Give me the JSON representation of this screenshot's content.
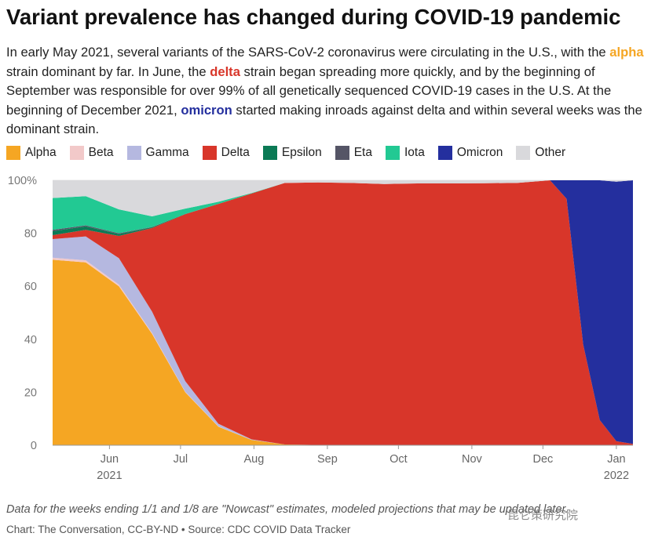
{
  "title": "Variant prevalence has changed during COVID-19 pandemic",
  "subtitle": {
    "p1": "In early May 2021, several variants of the SARS-CoV-2 coronavirus were circulating in the U.S., with the ",
    "alpha_word": "alpha",
    "p2": " strain dominant by far. In June, the ",
    "delta_word": "delta",
    "p3": " strain began spreading more quickly, and by the beginning of September was responsible for over 99% of all genetically sequenced COVID-19 cases in the U.S. At the beginning of December 2021, ",
    "omicron_word": "omicron",
    "p4": " started making inroads against delta and within several weeks was the dominant strain."
  },
  "colors": {
    "alpha": "#f5a623",
    "beta": "#f2c9c9",
    "gamma": "#b5b8e0",
    "delta": "#d8362a",
    "epsilon": "#0b7a55",
    "eta": "#555566",
    "iota": "#22c993",
    "omicron": "#242f9e",
    "other": "#d9d9dc"
  },
  "note": "Data for the weeks ending 1/1 and 1/8 are \"Nowcast\" estimates, modeled projections that may be updated later.",
  "credit": "Chart: The Conversation, CC-BY-ND • Source: CDC COVID Data Tracker",
  "watermark": "昆仑策研究院",
  "chart_data": {
    "type": "area",
    "stacked": true,
    "x_dates": [
      "2021-05-08",
      "2021-05-22",
      "2021-06-05",
      "2021-06-19",
      "2021-07-03",
      "2021-07-17",
      "2021-07-31",
      "2021-08-14",
      "2021-08-28",
      "2021-09-11",
      "2021-09-25",
      "2021-10-09",
      "2021-10-23",
      "2021-11-06",
      "2021-11-20",
      "2021-12-04",
      "2021-12-11",
      "2021-12-18",
      "2021-12-25",
      "2022-01-01",
      "2022-01-08"
    ],
    "series": [
      {
        "name": "Alpha",
        "key": "alpha",
        "values": [
          70,
          69,
          60,
          42,
          20,
          7,
          2,
          0.3,
          0.1,
          0.1,
          0,
          0,
          0,
          0,
          0,
          0,
          0,
          0,
          0,
          0,
          0
        ]
      },
      {
        "name": "Beta",
        "key": "beta",
        "values": [
          0.8,
          0.8,
          0.6,
          0.4,
          0.2,
          0.1,
          0,
          0,
          0,
          0,
          0,
          0,
          0,
          0,
          0,
          0,
          0,
          0,
          0,
          0,
          0
        ]
      },
      {
        "name": "Gamma",
        "key": "gamma",
        "values": [
          7,
          9,
          10,
          8,
          4,
          1,
          0.2,
          0,
          0,
          0,
          0,
          0,
          0,
          0,
          0,
          0,
          0,
          0,
          0,
          0,
          0
        ]
      },
      {
        "name": "Delta",
        "key": "delta",
        "values": [
          1.5,
          2.5,
          8.4,
          31.6,
          63,
          83,
          92.8,
          98.7,
          99.1,
          98.9,
          98.6,
          98.8,
          98.8,
          98.9,
          99,
          100,
          93,
          38,
          9.5,
          1.5,
          0.5
        ]
      },
      {
        "name": "Epsilon",
        "key": "epsilon",
        "values": [
          1.5,
          1.3,
          0.7,
          0.3,
          0.1,
          0,
          0,
          0,
          0,
          0,
          0,
          0,
          0,
          0,
          0,
          0,
          0,
          0,
          0,
          0,
          0
        ]
      },
      {
        "name": "Eta",
        "key": "eta",
        "values": [
          0.5,
          0.4,
          0.3,
          0.1,
          0,
          0,
          0,
          0,
          0,
          0,
          0,
          0,
          0,
          0,
          0,
          0,
          0,
          0,
          0,
          0,
          0
        ]
      },
      {
        "name": "Iota",
        "key": "iota",
        "values": [
          12,
          11,
          9,
          4,
          2,
          0.8,
          0.2,
          0,
          0,
          0,
          0,
          0,
          0,
          0,
          0,
          0,
          0,
          0,
          0,
          0,
          0
        ]
      },
      {
        "name": "Omicron",
        "key": "omicron",
        "values": [
          0,
          0,
          0,
          0,
          0,
          0,
          0,
          0,
          0,
          0,
          0,
          0,
          0,
          0,
          0,
          0,
          7,
          62,
          90.5,
          98,
          99.5
        ]
      },
      {
        "name": "Other",
        "key": "other",
        "values": [
          6.7,
          6,
          11,
          13.6,
          10.7,
          8.1,
          4.8,
          1,
          0.8,
          1,
          1.4,
          1.2,
          1.2,
          1.1,
          1,
          0,
          0,
          0,
          0,
          0.5,
          0
        ]
      }
    ],
    "x_ticks": [
      {
        "date": "2021-06-01",
        "label": "Jun",
        "sublabel": "2021"
      },
      {
        "date": "2021-07-01",
        "label": "Jul",
        "sublabel": ""
      },
      {
        "date": "2021-08-01",
        "label": "Aug",
        "sublabel": ""
      },
      {
        "date": "2021-09-01",
        "label": "Sep",
        "sublabel": ""
      },
      {
        "date": "2021-10-01",
        "label": "Oct",
        "sublabel": ""
      },
      {
        "date": "2021-11-01",
        "label": "Nov",
        "sublabel": ""
      },
      {
        "date": "2021-12-01",
        "label": "Dec",
        "sublabel": ""
      },
      {
        "date": "2022-01-01",
        "label": "Jan",
        "sublabel": "2022"
      }
    ],
    "y_ticks": [
      0,
      20,
      40,
      60,
      80,
      100
    ],
    "y_tick_labels": [
      "0",
      "20",
      "40",
      "60",
      "80",
      "100%"
    ],
    "ylim": [
      0,
      100
    ],
    "xlim": [
      "2021-05-08",
      "2022-01-08"
    ],
    "xlabel": "",
    "ylabel": "",
    "legend_position": "top"
  }
}
